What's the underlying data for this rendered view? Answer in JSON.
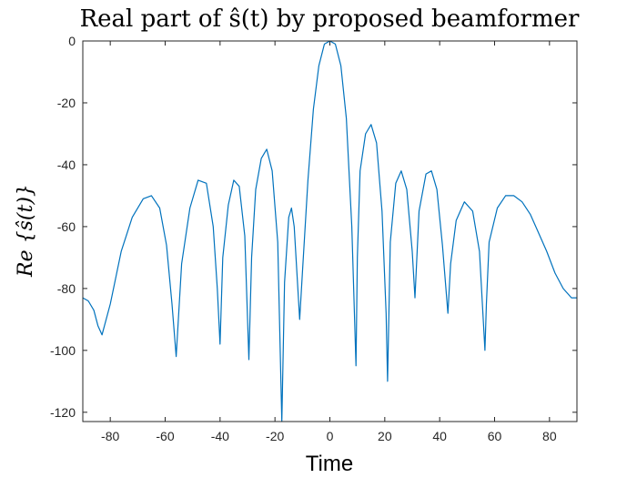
{
  "chart_data": {
    "type": "line",
    "title": "Real part of ŝ(t) by proposed beamformer",
    "xlabel": "Time",
    "ylabel": "Re {ŝ(t)}",
    "xlim": [
      -90,
      90
    ],
    "ylim": [
      -123,
      0
    ],
    "xticks": [
      -80,
      -60,
      -40,
      -20,
      0,
      20,
      40,
      60,
      80
    ],
    "yticks": [
      0,
      -20,
      -40,
      -60,
      -80,
      -100,
      -120
    ],
    "grid": false,
    "legend": "none",
    "series_color": "#0072BD",
    "series": [
      {
        "x": [
          -90,
          -88,
          -86,
          -84.5,
          -83,
          -80,
          -76,
          -72,
          -68,
          -65,
          -62,
          -59.5,
          -57.5,
          -56,
          -54,
          -51,
          -48,
          -45,
          -42.5,
          -41,
          -40,
          -39,
          -37,
          -35,
          -33,
          -31,
          -29.5,
          -28.5,
          -27,
          -25,
          -23,
          -21,
          -19,
          -17.5,
          -16.5,
          -15,
          -14,
          -13,
          -12,
          -11,
          -10,
          -8,
          -6,
          -4,
          -2,
          0,
          2,
          4,
          6,
          8,
          9.5,
          10,
          11,
          13,
          15,
          17,
          19,
          20.5,
          21,
          22,
          24,
          26,
          28,
          30,
          31,
          32.5,
          35,
          37,
          39,
          41,
          43,
          44,
          46,
          49,
          52,
          54.5,
          56.5,
          57,
          58,
          61,
          64,
          67,
          70,
          73,
          76,
          79,
          82,
          85,
          88,
          90
        ],
        "y": [
          -83,
          -84,
          -87,
          -92,
          -95,
          -85,
          -68,
          -57,
          -51,
          -50,
          -54,
          -66,
          -85,
          -102,
          -72,
          -54,
          -45,
          -46,
          -60,
          -80,
          -98,
          -70,
          -53,
          -45,
          -47,
          -63,
          -103,
          -70,
          -48,
          -38,
          -35,
          -42,
          -65,
          -123,
          -78,
          -57,
          -54,
          -60,
          -75,
          -90,
          -75,
          -45,
          -22,
          -8,
          -1,
          0,
          -1,
          -8,
          -25,
          -60,
          -105,
          -70,
          -42,
          -30,
          -27,
          -33,
          -55,
          -88,
          -110,
          -65,
          -46,
          -42,
          -48,
          -68,
          -83,
          -55,
          -43,
          -42,
          -48,
          -66,
          -88,
          -72,
          -58,
          -52,
          -55,
          -68,
          -100,
          -85,
          -65,
          -54,
          -50,
          -50,
          -52,
          -56,
          -62,
          -68,
          -75,
          -80,
          -83,
          -83
        ]
      }
    ]
  }
}
